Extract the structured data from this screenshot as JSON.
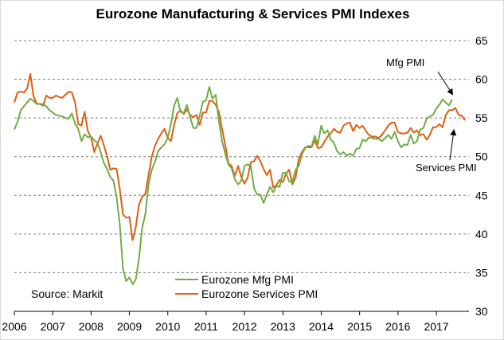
{
  "chart_data": {
    "type": "line",
    "title": "Eurozone Manufacturing & Services PMI Indexes",
    "source": "Source:   Markit",
    "ylim": [
      30,
      65
    ],
    "yticks": [
      30,
      35,
      40,
      45,
      50,
      55,
      60,
      65
    ],
    "xlim": [
      2006.0,
      2017.85
    ],
    "xticks": [
      "2006",
      "2007",
      "2008",
      "2009",
      "2010",
      "2011",
      "2012",
      "2013",
      "2014",
      "2015",
      "2016",
      "2017"
    ],
    "y_axis_position": "right",
    "grid": "horizontal dashed",
    "legend": "bottom-left",
    "annotations": [
      {
        "text": "Mfg PMI",
        "points_to": "Eurozone Mfg PMI"
      },
      {
        "text": "Services PMI",
        "points_to": "Eurozone Services PMI"
      }
    ],
    "series": [
      {
        "name": "Eurozone Mfg PMI",
        "color": "#70ad47",
        "start": 2006.0,
        "step": 0.0833,
        "values": [
          53.5,
          54.5,
          56,
          56.5,
          57,
          57.5,
          57.2,
          56.8,
          56.8,
          56.8,
          56.5,
          56,
          55.7,
          55.4,
          55.3,
          55.2,
          55,
          54.9,
          55.6,
          54.3,
          53.6,
          52,
          52.9,
          52.5,
          52.6,
          52.1,
          51.8,
          50.6,
          49.2,
          48.4,
          47.4,
          46.9,
          44.8,
          41.2,
          35.5,
          33.9,
          34.4,
          33.5,
          34.1,
          36.8,
          40.8,
          42.6,
          46.4,
          48.3,
          49.3,
          50.7,
          51.2,
          51.6,
          52.4,
          54.2,
          56.6,
          57.6,
          55.8,
          55.6,
          56.7,
          55.1,
          53.7,
          53.7,
          55.3,
          57.1,
          57.3,
          59,
          57.5,
          58,
          54.6,
          52,
          50.4,
          49,
          48.5,
          47.1,
          46.4,
          46.9,
          48.8,
          49,
          48.8,
          45.9,
          45.1,
          45.1,
          44,
          45.1,
          46.1,
          45.4,
          46.2,
          46.1,
          47.9,
          47.9,
          46.8,
          46.7,
          48.3,
          48.8,
          50.3,
          51.1,
          51.4,
          51.3,
          52.7,
          51.6,
          54,
          53,
          53.4,
          52.2,
          51.8,
          50.7,
          50.3,
          50.6,
          50.1,
          50.4,
          50.1,
          51,
          51.1,
          52.2,
          52,
          52.5,
          52.4,
          52.3,
          52.3,
          52,
          52.4,
          52.8,
          52.3,
          53.2,
          52,
          51.2,
          51.6,
          51.5,
          52.8,
          51.7,
          52,
          53.5,
          53.7,
          54.9,
          55.2,
          55.4,
          56.2,
          56.7,
          57.4,
          57,
          56.6,
          57.4
        ]
      },
      {
        "name": "Eurozone Services PMI",
        "color": "#e15e12",
        "start": 2006.0,
        "step": 0.0833,
        "values": [
          57,
          58.3,
          58.4,
          58.3,
          58.8,
          60.7,
          57.8,
          56.9,
          56.8,
          56.6,
          57.9,
          57.6,
          57.6,
          57.9,
          57.7,
          57.6,
          58,
          58.4,
          58.3,
          57,
          54.2,
          54,
          55.8,
          53.3,
          52.5,
          50.6,
          51.7,
          52.7,
          51.5,
          50.1,
          48.3,
          48.5,
          48.4,
          45.8,
          42.5,
          42.1,
          42.2,
          39.2,
          40.9,
          43.8,
          44.8,
          45.2,
          47.6,
          50,
          51.4,
          52.3,
          53,
          53.6,
          52.4,
          52,
          54.1,
          55.6,
          56,
          55.5,
          56.1,
          55.4,
          55.1,
          55.4,
          54.1,
          55.7,
          55.7,
          57.2,
          57.2,
          56.7,
          55.8,
          53.6,
          51.5,
          49.1,
          48.8,
          47.5,
          48.8,
          47.4,
          46.5,
          47.3,
          49.3,
          49.4,
          50.1,
          49.4,
          48.4,
          47.6,
          48.3,
          46,
          46.3,
          47,
          46.7,
          47.8,
          48.3,
          46.4,
          47.3,
          49.7,
          50.6,
          51.2,
          51.2,
          51.2,
          52.1,
          51.1,
          51.2,
          51.9,
          52.6,
          53,
          53.6,
          53.2,
          53.1,
          54,
          54.3,
          54.4,
          53.3,
          54.1,
          53.7,
          54,
          53.3,
          52.8,
          52.6,
          52.6,
          52.4,
          52.8,
          53.4,
          54,
          54.4,
          54.4,
          53.2,
          53,
          53,
          53.1,
          53.7,
          53.1,
          53.4,
          52.8,
          52.9,
          52.2,
          52.8,
          53.8,
          53.8,
          54.2,
          53.8,
          55.4,
          56,
          56,
          56.3,
          55.4,
          55.3,
          54.7
        ]
      }
    ]
  }
}
